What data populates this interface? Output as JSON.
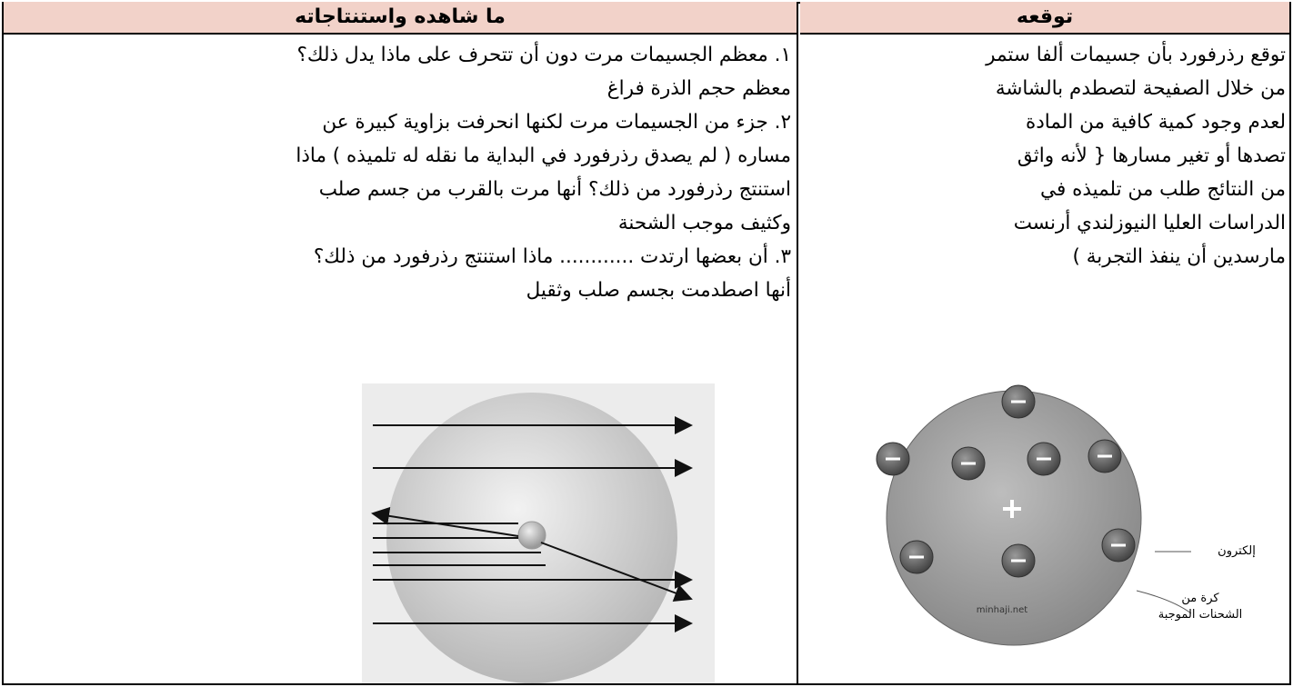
{
  "table": {
    "columns": [
      {
        "header": "توقعه",
        "lines": [
          "توقع رذرفورد بأن جسيمات ألفا ستمر",
          "من خلال الصفيحة لتصطدم بالشاشة",
          "لعدم وجود كمية كافية من المادة",
          "تصدها أو تغير مسارها { لأنه واثق",
          "من النتائج طلب من تلميذه في",
          "الدراسات العليا النيوزلندي أرنست",
          "مارسدين أن ينفذ التجربة )"
        ],
        "figure": {
          "electron_label": "إلكترون",
          "sphere_label_1": "كرة من",
          "sphere_label_2": "الشحنات الموجبة",
          "watermark": "minhaji.net"
        }
      },
      {
        "header": "ما شاهده واستنتاجاته",
        "lines": [
          "١. معظم الجسيمات مرت دون أن تتحرف  على ماذا يدل ذلك؟",
          "معظم حجم الذرة فراغ",
          "٢. جزء من الجسيمات مرت لكنها انحرفت بزاوية كبيرة عن",
          "مساره ( لم يصدق رذرفورد في البداية ما نقله له تلميذه )  ماذا",
          "استنتج رذرفورد من ذلك؟ أنها مرت بالقرب من جسم صلب",
          "وكثيف موجب الشحنة",
          "٣. أن بعضها ارتدت ............ ماذا استنتج رذرفورد من ذلك؟",
          "أنها اصطدمت بجسم صلب وثقيل"
        ]
      }
    ]
  }
}
